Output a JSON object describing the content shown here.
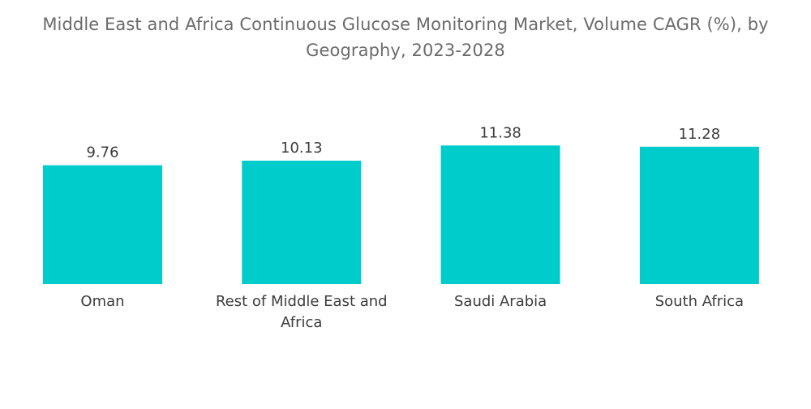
{
  "title": {
    "line1": "Middle East and Africa Continuous Glucose Monitoring Market, Volume CAGR (%), by",
    "line2": "Geography, 2023-2028"
  },
  "colors": {
    "bar": "#00cccc",
    "title": "#6b6b6b",
    "label": "#3c3c3c"
  },
  "chart_data": {
    "type": "bar",
    "title": "Middle East and Africa Continuous Glucose Monitoring Market, Volume CAGR (%), by Geography, 2023-2028",
    "categories": [
      "Oman",
      "Rest of Middle East and Africa",
      "Saudi Arabia",
      "South Africa"
    ],
    "category_lines": [
      [
        "Oman"
      ],
      [
        "Rest of Middle East and",
        "Africa"
      ],
      [
        "Saudi Arabia"
      ],
      [
        "South Africa"
      ]
    ],
    "values": [
      9.76,
      10.13,
      11.38,
      11.28
    ],
    "value_labels": [
      "9.76",
      "10.13",
      "11.38",
      "11.28"
    ],
    "xlabel": "",
    "ylabel": "",
    "grid": false,
    "legend": "none"
  }
}
